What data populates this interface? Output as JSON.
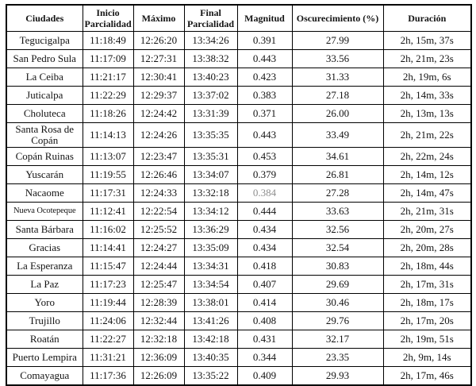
{
  "page": {
    "background_color": "#ffffff",
    "text_color": "#141414",
    "border_color": "#000000",
    "muted_value_color": "#8f8f8f"
  },
  "table": {
    "headers": [
      "Ciudades",
      "Inicio Parcialidad",
      "Máximo",
      "Final Parcialidad",
      "Magnitud",
      "Oscurecimiento (%)",
      "Duración"
    ],
    "rows": [
      {
        "city": "Tegucigalpa",
        "inicio_parcialidad": "11:18:49",
        "maximo": "12:26:20",
        "final_parcialidad": "13:34:26",
        "magnitud": "0.391",
        "oscurecimiento_pct": "27.99",
        "duracion": "2h, 15m, 37s"
      },
      {
        "city": "San Pedro Sula",
        "inicio_parcialidad": "11:17:09",
        "maximo": "12:27:31",
        "final_parcialidad": "13:38:32",
        "magnitud": "0.443",
        "oscurecimiento_pct": "33.56",
        "duracion": "2h, 21m, 23s"
      },
      {
        "city": "La Ceiba",
        "inicio_parcialidad": "11:21:17",
        "maximo": "12:30:41",
        "final_parcialidad": "13:40:23",
        "magnitud": "0.423",
        "oscurecimiento_pct": "31.33",
        "duracion": "2h, 19m, 6s"
      },
      {
        "city": "Juticalpa",
        "inicio_parcialidad": "11:22:29",
        "maximo": "12:29:37",
        "final_parcialidad": "13:37:02",
        "magnitud": "0.383",
        "oscurecimiento_pct": "27.18",
        "duracion": "2h, 14m, 33s"
      },
      {
        "city": "Choluteca",
        "inicio_parcialidad": "11:18:26",
        "maximo": "12:24:42",
        "final_parcialidad": "13:31:39",
        "magnitud": "0.371",
        "oscurecimiento_pct": "26.00",
        "duracion": "2h, 13m, 13s"
      },
      {
        "city": "Santa Rosa de Copán",
        "inicio_parcialidad": "11:14:13",
        "maximo": "12:24:26",
        "final_parcialidad": "13:35:35",
        "magnitud": "0.443",
        "oscurecimiento_pct": "33.49",
        "duracion": "2h, 21m, 22s"
      },
      {
        "city": "Copán Ruinas",
        "inicio_parcialidad": "11:13:07",
        "maximo": "12:23:47",
        "final_parcialidad": "13:35:31",
        "magnitud": "0.453",
        "oscurecimiento_pct": "34.61",
        "duracion": "2h, 22m, 24s"
      },
      {
        "city": "Yuscarán",
        "inicio_parcialidad": "11:19:55",
        "maximo": "12:26:46",
        "final_parcialidad": "13:34:07",
        "magnitud": "0.379",
        "oscurecimiento_pct": "26.81",
        "duracion": "2h, 14m, 12s"
      },
      {
        "city": "Nacaome",
        "inicio_parcialidad": "11:17:31",
        "maximo": "12:24:33",
        "final_parcialidad": "13:32:18",
        "magnitud": "0.384",
        "oscurecimiento_pct": "27.28",
        "duracion": "2h, 14m, 47s"
      },
      {
        "city": "Nueva Ocotepeque",
        "inicio_parcialidad": "11:12:41",
        "maximo": "12:22:54",
        "final_parcialidad": "13:34:12",
        "magnitud": "0.444",
        "oscurecimiento_pct": "33.63",
        "duracion": "2h, 21m, 31s"
      },
      {
        "city": "Santa Bárbara",
        "inicio_parcialidad": "11:16:02",
        "maximo": "12:25:52",
        "final_parcialidad": "13:36:29",
        "magnitud": "0.434",
        "oscurecimiento_pct": "32.56",
        "duracion": "2h, 20m, 27s"
      },
      {
        "city": "Gracias",
        "inicio_parcialidad": "11:14:41",
        "maximo": "12:24:27",
        "final_parcialidad": "13:35:09",
        "magnitud": "0.434",
        "oscurecimiento_pct": "32.54",
        "duracion": "2h, 20m, 28s"
      },
      {
        "city": "La Esperanza",
        "inicio_parcialidad": "11:15:47",
        "maximo": "12:24:44",
        "final_parcialidad": "13:34:31",
        "magnitud": "0.418",
        "oscurecimiento_pct": "30.83",
        "duracion": "2h, 18m, 44s"
      },
      {
        "city": "La Paz",
        "inicio_parcialidad": "11:17:23",
        "maximo": "12:25:47",
        "final_parcialidad": "13:34:54",
        "magnitud": "0.407",
        "oscurecimiento_pct": "29.69",
        "duracion": "2h, 17m, 31s"
      },
      {
        "city": "Yoro",
        "inicio_parcialidad": "11:19:44",
        "maximo": "12:28:39",
        "final_parcialidad": "13:38:01",
        "magnitud": "0.414",
        "oscurecimiento_pct": "30.46",
        "duracion": "2h, 18m, 17s"
      },
      {
        "city": "Trujillo",
        "inicio_parcialidad": "11:24:06",
        "maximo": "12:32:44",
        "final_parcialidad": "13:41:26",
        "magnitud": "0.408",
        "oscurecimiento_pct": "29.76",
        "duracion": "2h, 17m, 20s"
      },
      {
        "city": "Roatán",
        "inicio_parcialidad": "11:22:27",
        "maximo": "12:32:18",
        "final_parcialidad": "13:42:18",
        "magnitud": "0.431",
        "oscurecimiento_pct": "32.17",
        "duracion": "2h, 19m, 51s"
      },
      {
        "city": "Puerto Lempira",
        "inicio_parcialidad": "11:31:21",
        "maximo": "12:36:09",
        "final_parcialidad": "13:40:35",
        "magnitud": "0.344",
        "oscurecimiento_pct": "23.35",
        "duracion": "2h, 9m, 14s"
      },
      {
        "city": "Comayagua",
        "inicio_parcialidad": "11:17:36",
        "maximo": "12:26:09",
        "final_parcialidad": "13:35:22",
        "magnitud": "0.409",
        "oscurecimiento_pct": "29.93",
        "duracion": "2h, 17m, 46s"
      }
    ]
  }
}
